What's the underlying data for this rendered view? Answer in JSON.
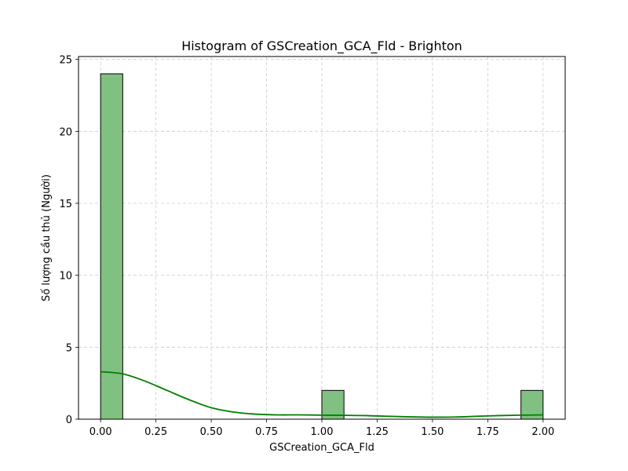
{
  "chart_data": {
    "type": "bar",
    "title": "Histogram of GSCreation_GCA_Fld - Brighton",
    "xlabel": "GSCreation_GCA_Fld",
    "ylabel": "Số lượng cầu thủ (Người)",
    "xlim": [
      -0.1,
      2.1
    ],
    "ylim": [
      0,
      25.2
    ],
    "grid": true,
    "bins": [
      {
        "x0": 0.0,
        "x1": 0.1,
        "count": 24
      },
      {
        "x0": 1.0,
        "x1": 1.1,
        "count": 2
      },
      {
        "x0": 1.9,
        "x1": 2.0,
        "count": 2
      }
    ],
    "kde": {
      "x": [
        0.0,
        0.1,
        0.2,
        0.3,
        0.4,
        0.5,
        0.6,
        0.7,
        0.8,
        0.9,
        1.0,
        1.1,
        1.2,
        1.3,
        1.4,
        1.5,
        1.6,
        1.7,
        1.8,
        1.9,
        2.0
      ],
      "y": [
        3.3,
        3.15,
        2.65,
        2.0,
        1.35,
        0.8,
        0.5,
        0.35,
        0.3,
        0.3,
        0.28,
        0.27,
        0.25,
        0.2,
        0.16,
        0.14,
        0.15,
        0.2,
        0.25,
        0.28,
        0.3
      ]
    },
    "x_ticks": [
      "0.00",
      "0.25",
      "0.50",
      "0.75",
      "1.00",
      "1.25",
      "1.50",
      "1.75",
      "2.00"
    ],
    "y_ticks": [
      "0",
      "5",
      "10",
      "15",
      "20",
      "25"
    ],
    "colors": {
      "bar_fill": "#80c080",
      "bar_edge": "#000000",
      "kde_line": "#008000",
      "grid": "#cccccc"
    }
  }
}
